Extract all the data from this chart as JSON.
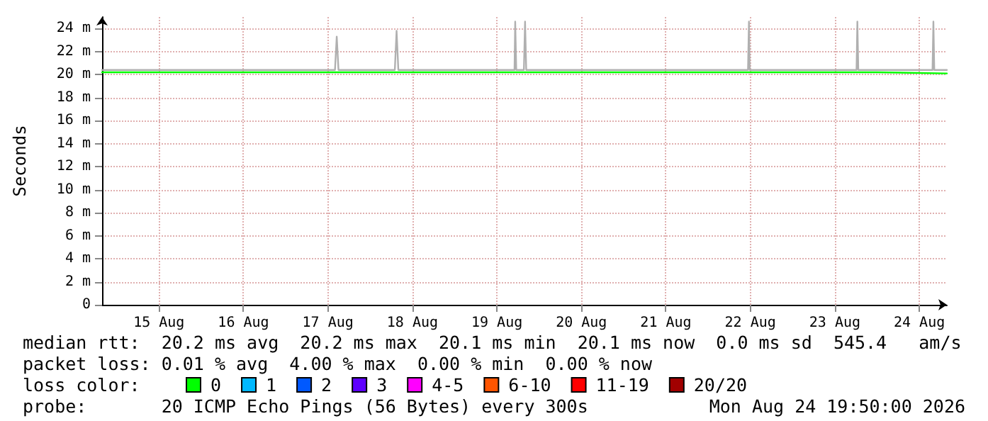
{
  "chart_data": {
    "type": "line",
    "ylabel": "Seconds",
    "xlim": [
      "2026-08-14T19:50",
      "2026-08-24T19:50"
    ],
    "xticks": [
      {
        "value": "2026-08-15T12:00",
        "label": "15 Aug"
      },
      {
        "value": "2026-08-16T12:00",
        "label": "16 Aug"
      },
      {
        "value": "2026-08-17T12:00",
        "label": "17 Aug"
      },
      {
        "value": "2026-08-18T12:00",
        "label": "18 Aug"
      },
      {
        "value": "2026-08-19T12:00",
        "label": "19 Aug"
      },
      {
        "value": "2026-08-20T12:00",
        "label": "20 Aug"
      },
      {
        "value": "2026-08-21T12:00",
        "label": "21 Aug"
      },
      {
        "value": "2026-08-22T12:00",
        "label": "22 Aug"
      },
      {
        "value": "2026-08-23T12:00",
        "label": "23 Aug"
      },
      {
        "value": "2026-08-24T12:00",
        "label": "24 Aug"
      }
    ],
    "ylim": [
      0,
      25
    ],
    "yticks": [
      0,
      {
        "value": 2,
        "label": "2 m"
      },
      {
        "value": 4,
        "label": "4 m"
      },
      {
        "value": 6,
        "label": "6 m"
      },
      {
        "value": 8,
        "label": "8 m"
      },
      {
        "value": 10,
        "label": "10 m"
      },
      {
        "value": 12,
        "label": "12 m"
      },
      {
        "value": 14,
        "label": "14 m"
      },
      {
        "value": 16,
        "label": "16 m"
      },
      {
        "value": 18,
        "label": "18 m"
      },
      {
        "value": 20,
        "label": "20 m"
      },
      {
        "value": 22,
        "label": "22 m"
      },
      {
        "value": 24,
        "label": "24 m"
      }
    ],
    "grid": true,
    "legend": "bottom",
    "marker": "none",
    "line_style": "solid",
    "series": [
      {
        "color": "#b0b0b0",
        "x": [
          "2026-08-14T19:50",
          "2026-08-17T14:00",
          "2026-08-17T14:30",
          "2026-08-17T15:00",
          "2026-08-18T07:00",
          "2026-08-18T07:30",
          "2026-08-18T08:00",
          "2026-08-19T17:00",
          "2026-08-19T17:12",
          "2026-08-19T17:30",
          "2026-08-19T19:40",
          "2026-08-19T20:00",
          "2026-08-19T20:20",
          "2026-08-22T11:20",
          "2026-08-22T11:36",
          "2026-08-22T11:50",
          "2026-08-23T18:10",
          "2026-08-23T18:24",
          "2026-08-23T18:40",
          "2026-08-24T15:45",
          "2026-08-24T16:00",
          "2026-08-24T16:15",
          "2026-08-24T19:50"
        ],
        "values": [
          20.4,
          20.4,
          23.3,
          20.4,
          20.4,
          23.8,
          20.4,
          20.4,
          24.6,
          20.4,
          20.4,
          24.6,
          20.4,
          20.4,
          24.6,
          20.4,
          20.4,
          24.6,
          20.4,
          20.4,
          24.6,
          20.4,
          20.4
        ]
      },
      {
        "name": "0",
        "color": "#00ff00",
        "x": [
          "2026-08-14T19:50",
          "2026-08-16T00:00",
          "2026-08-18T00:00",
          "2026-08-20T00:00",
          "2026-08-22T00:00",
          "2026-08-24T00:00",
          "2026-08-24T19:50"
        ],
        "values": [
          20.2,
          20.2,
          20.2,
          20.2,
          20.2,
          20.2,
          20.1
        ]
      },
      {
        "name": "1",
        "color": "#00b8ff",
        "values": [
          null
        ]
      },
      {
        "name": "2",
        "color": "#0059ff",
        "values": [
          null
        ]
      },
      {
        "name": "3",
        "color": "#5e00ff",
        "values": [
          null
        ]
      },
      {
        "name": "4-5",
        "color": "#ff00ff",
        "values": [
          null
        ]
      },
      {
        "name": "6-10",
        "color": "#ff5500",
        "values": [
          null
        ]
      },
      {
        "name": "11-19",
        "color": "#ff0000",
        "values": [
          null
        ]
      },
      {
        "name": "20/20",
        "color": "#a10000",
        "values": [
          null
        ]
      }
    ],
    "annotations": [
      "median rtt:  20.2 ms avg  20.2 ms max  20.1 ms min  20.1 ms now  0.0 ms sd  545.4   am/s",
      "packet loss: 0.01 % avg  4.00 % max  0.00 % min  0.00 % now",
      "loss color:",
      "probe:       20 ICMP Echo Pings (56 Bytes) every 300s",
      "Mon Aug 24 19:50:00 2026"
    ]
  }
}
